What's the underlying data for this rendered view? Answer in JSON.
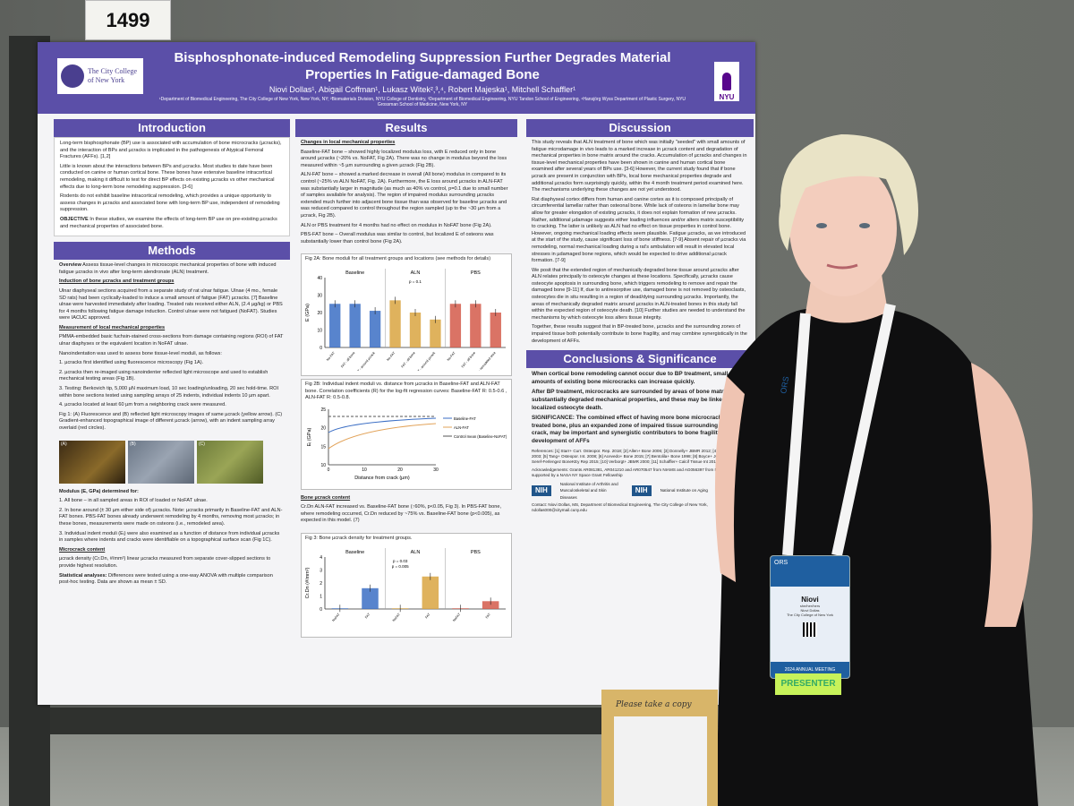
{
  "board_number": "1499",
  "poster": {
    "title": "Bisphosphonate-induced Remodeling Suppression Further Degrades Material Properties In Fatigue-damaged Bone",
    "authors": "Niovi Dollas¹, Abigail Coffman¹, Lukasz Witek²,³,⁴, Robert Majeska¹, Mitchell Schaffler¹",
    "affiliations": "¹Department of Biomedical Engineering, The City College of New York, New York, NY; ²Biomaterials Division, NYU College of Dentistry, ³Department of Biomedical Engineering, NYU Tandon School of Engineering, ⁴Hansjörg Wyss Department of Plastic Surgery, NYU Grossman School of Medicine, New York, NY",
    "logo_left": "The City College of New York",
    "logo_right": "NYU",
    "sections": {
      "introduction": {
        "heading": "Introduction",
        "bullets": [
          "Long-term bisphosphonate (BP) use is associated with accumulation of bone microcracks (µcracks), and the interaction of BPs and µcracks is implicated in the pathogenesis of Atypical Femoral Fractures (AFFs). [1,2]",
          "Little is known about the interactions between BPs and µcracks. Most studies to date have been conducted on canine or human cortical bone. These bones have extensive baseline intracortical remodeling, making it difficult to test for direct BP effects on existing µcracks vs other mechanical effects due to long-term bone remodeling suppression. [3-6]",
          "Rodents do not exhibit baseline intracortical remodeling, which provides a unique opportunity to assess changes in µcracks and associated bone with long-term BP use, independent of remodeling suppression."
        ],
        "objective_label": "OBJECTIVE",
        "objective": "In these studies, we examine the effects of long-term BP use on pre-existing µcracks and mechanical properties of associated bone."
      },
      "methods": {
        "heading": "Methods",
        "overview_label": "Overview",
        "overview": "Assess tissue-level changes in microscopic mechanical properties of bone with induced fatigue µcracks in vivo after long-term alendronate (ALN) treatment.",
        "induction_heading": "Induction of bone µcracks and treatment groups",
        "induction": "Ulnar diaphyseal sections acquired from a separate study of rat ulnar fatigue. Ulnae (4 mo., female SD rats) had been cyclically-loaded to induce a small amount of fatigue (FAT) µcracks. [7] Baseline ulnae were harvested immediately after loading. Treated rats received either ALN, (2.4 µg/kg) or PBS for 4 months following fatigue damage induction. Control ulnae were not fatigued (NoFAT). Studies were IACUC approved.",
        "measurement_heading": "Measurement of local mechanical properties",
        "measurement": [
          "PMMA-embedded basic fuchsin-stained cross-sections from damage containing regions (ROI) of FAT ulnar diaphyses or the equivalent location in NoFAT ulnae.",
          "Nanoindentation was used to assess bone tissue-level moduli, as follows:",
          "1. µcracks first identified using fluorescence microscopy (Fig 1A).",
          "2. µcracks then re-imaged using nanoindenter reflected light microscope and used to establish mechanical testing areas (Fig 1B).",
          "3. Testing: Berkovich tip, 5,000 µN maximum load, 10 sec loading/unloading, 20 sec hold-time. ROI within bone sections tested using sampling arrays of 25 indents, individual indents 10 µm apart.",
          "4. µcracks located at least 60 µm from a neighboring crack were measured."
        ],
        "fig1_caption": "Fig 1: (A) Fluorescence and (B) reflected light microscopy images of same µcrack (yellow arrow). (C) Gradient-enhanced topographical image of different µcrack (arrow), with an indent sampling array overlaid (red circles).",
        "fig1_panels": [
          "(A)",
          "(B)",
          "(C)"
        ],
        "scale_bar": "100 µm",
        "modulus_heading": "Modulus (E, GPa) determined for:",
        "modulus": [
          "1. All bone – in all sampled areas in ROI of loaded or NoFAT ulnae.",
          "2. In bone around (± 30 µm either side of) µcracks. Note: µcracks primarily in Baseline-FAT and ALN-FAT bones. PBS-FAT bones already underwent remodeling by 4 months, removing most µcracks; in these bones, measurements were made on osteons (i.e., remodeled area).",
          "3. Individual indent moduli (Eᵢ) were also examined as a function of distance from individual µcracks in samples where indents and cracks were identifiable on a topographical surface scan (Fig 1C)."
        ],
        "microcrack_heading": "Microcrack content",
        "microcrack": "µcrack density (Cr.Dn, #/mm²) linear µcracks measured from separate cover-slipped sections to provide highest resolution.",
        "stats_label": "Statistical analyses:",
        "stats": "Differences were tested using a one-way ANOVA with multiple comparison post-hoc testing. Data are shown as mean ± SD."
      },
      "results": {
        "heading": "Results",
        "local_heading": "Changes in local mechanical properties",
        "items": [
          "Baseline-FAT bone – showed highly localized modulus loss, with E reduced only in bone around µcracks (~20% vs. NoFAT, Fig 2A). There was no change in modulus beyond the loss measured within ~5 µm surrounding a given µcrack (Fig 2B).",
          "ALN-FAT bone – showed a marked decrease in overall (All bone) modulus in compared to its control (~25% vs ALN NoFAT, Fig. 2A). Furthermore, the E loss around µcracks in ALN-FAT was substantially larger in magnitude (as much as 40% vs control, p=0.1 due to small number of samples available for analysis). The region of impaired modulus surrounding µcracks extended much further into adjacent bone tissue than was observed for baseline µcracks and was reduced compared to control throughout the region sampled (up to the ~30 µm from a µcrack, Fig 2B).",
          "ALN or PBS treatment for 4 months had no effect on modulus in NoFAT bone (Fig 2A).",
          "PBS-FAT bone – Overall modulus was similar to control, but localized E of osteons was substantially lower than control bone (Fig 2A)."
        ],
        "fig2a_caption": "Fig 2A: Bone moduli for all treatment groups and locations (see methods for details)",
        "fig2b_caption": "Fig 2B: Individual indent moduli vs. distance from µcracks in Baseline-FAT and ALN-FAT bone. Correlation coefficients (R) for the log-fit regression curves: Baseline-FAT R: 0.5-0.6 , ALN-FAT R: 0.5-0.8.",
        "content_heading": "Bone µcrack content",
        "content": "Cr.Dn ALN-FAT increased vs. Baseline-FAT bone (↑60%, p<0.05, Fig 3). In PBS-FAT bone, where remodeling occurred, Cr.Dn reduced by ~75% vs. Baseline-FAT bone (p<0.005), as expected in this model. (7)",
        "fig3_caption": "Fig 3: Bone µcrack density for treatment groups."
      },
      "discussion": {
        "heading": "Discussion",
        "paragraphs": [
          "This study reveals that ALN treatment of bone which was initially \"seeded\" with small amounts of fatigue microdamage in vivo leads to a marked increase in µcrack content and degradation of mechanical properties in bone matrix around the cracks. Accumulation of µcracks and changes in tissue-level mechanical properties have been shown in canine and human cortical bone examined after several years of BPs use. [3-6] However, the current study found that if bone µcrack are present in conjunction with BPs, local bone mechanical properties degrade and additional µcracks form surprisingly quickly, within the 4 month treatment period examined here. The mechanisms underlying these changes are not yet understood.",
          "Rat diaphyseal cortex differs from human and canine cortex as it is composed principally of circumferential lamellar rather than osteonal bone. While lack of osteons in lamellar bone may allow for greater elongation of existing µcracks, it does not explain formation of new µcracks. Rather, additional µdamage suggests either loading influences and/or alters matrix susceptibility to cracking. The latter is unlikely as ALN had no effect on tissue properties in control bone. However, ongoing mechanical loading effects seem plausible. Fatigue µcracks, as we introduced at the start of the study, cause significant loss of bone stiffness. [7-9] Absent repair of µcracks via remodeling, normal mechanical loading during a rat's ambulation will result in elevated local stresses in µdamaged bone regions, which would be expected to drive additional µcrack formation. [7-9]",
          "We posit that the extended region of mechanically degraded bone tissue around µcracks after ALN relates principally to osteocyte changes at these locations. Specifically, µcracks cause osteocyte apoptosis in surrounding bone, which triggers remodeling to remove and repair the damaged bone [9-11] If, due to antiresorptive use, damaged bone is not removed by osteoclasts, osteocytes die in situ resulting in a region of dead/dying surrounding µcracks. Importantly, the areas of mechanically degraded matrix around µcracks in ALN-treated bones in this study fall within the expected region of osteocyte death. [10] Further studies are needed to understand the mechanisms by which osteocyte loss alters tissue integrity.",
          "Together, these results suggest that in BP-treated bone, µcracks and the surrounding zones of impaired tissue both potentially contribute to bone fragility, and may combine synergistically in the development of AFFs."
        ]
      },
      "conclusions": {
        "heading": "Conclusions & Significance",
        "bullets": [
          "When cortical bone remodeling cannot occur due to BP treatment, small amounts of existing bone microcracks can increase quickly.",
          "After BP treatment, microcracks are surrounded by areas of bone matrix with substantially degraded mechanical properties, and these may be linked to localized osteocyte death."
        ],
        "significance": "SIGNIFICANCE: The combined effect of having more bone microcracks in BP treated bone, plus an expanded zone of impaired tissue surrounding each crack, may be important and synergistic contributors to bone fragility and development of AFFs",
        "references": "References: [1] Starr+ Curr. Osteopor. Rep. 2018; [2] Allen+ Bone 2006; [3] Donnelly+ JBMR 2012; [4] Burr+ Bone 2003; [5] Tang+ Osteopor. Int. 2008; [6] Acevedo+ Bone 2015; [7] Bentolila+ Bone 1998; [8] Boyce+ JOR 1998; [9] Seref-Ferlengez BoneKEy Rep 2015; [10] Verborgt+ JBMR 2000; [11] Schaffler+ Calcif Tissue Int 2013",
        "acknowledgements": "Acknowledgements: Grants AR081381, AR041210 and AR070547 from NIAMS and AG056397 from NIA. ND was supported by a NASA NY Space Grant Fellowship",
        "nih_1": "National Institute of Arthritis and Musculoskeletal and Skin Diseases",
        "nih_2": "National Institute on Aging",
        "nih_badge": "NIH",
        "contact": "Contact: Niovi Dollas, MS, Department of Biomedical Engineering, The City College of New York, ndollas000@citymail.cuny.edu"
      }
    },
    "charts": {
      "fig2a": {
        "groups": [
          "Baseline",
          "ALN",
          "PBS"
        ],
        "ylabel": "E (GPa)",
        "pvalue": "p = 0.1",
        "categories": [
          "No-FAT",
          "FAT - all bone",
          "FAT - around µcrack",
          "No-FAT",
          "FAT - all bone",
          "FAT - around µcrack",
          "No-FAT",
          "FAT - all bone",
          "FAT - remodeled area"
        ],
        "values": [
          25,
          25,
          21,
          27,
          20,
          16,
          25,
          25,
          20
        ],
        "ylim": [
          0,
          40
        ],
        "yticks": [
          "0",
          "10",
          "20",
          "30",
          "40"
        ],
        "colors": [
          "#3b6ec4",
          "#3b6ec4",
          "#3b6ec4",
          "#d9a441",
          "#d9a441",
          "#d9a441",
          "#d45a4a",
          "#d45a4a",
          "#d45a4a"
        ]
      },
      "fig2b": {
        "ylabel": "Eᵢ (GPa)",
        "xlabel": "Distance from crack (µm)",
        "xticks": [
          "0",
          "10",
          "20",
          "30"
        ],
        "yticks": [
          "10",
          "15",
          "20",
          "25"
        ],
        "legend": [
          "Baseline-FAT",
          "ALN-FAT",
          "Control mean (Baseline-NoFAT)"
        ]
      },
      "fig3": {
        "groups": [
          "Baseline",
          "ALN",
          "PBS"
        ],
        "ylabel": "Cr.Dn (#/mm²)",
        "pvalue1": "p = 0.03",
        "pvalue2": "p = 0.005",
        "categories": [
          "NoFAT",
          "FAT",
          "NoFAT",
          "FAT",
          "NoFAT",
          "FAT"
        ],
        "values": [
          0.05,
          1.6,
          0.05,
          2.5,
          0.05,
          0.6
        ],
        "ylim": [
          0,
          4
        ],
        "yticks": [
          "0",
          "1",
          "2",
          "3",
          "4"
        ],
        "colors": [
          "#3b6ec4",
          "#3b6ec4",
          "#d9a441",
          "#d9a441",
          "#d45a4a",
          "#d45a4a"
        ]
      }
    }
  },
  "badge": {
    "event": "2024 ANNUAL MEETING",
    "org": "ORS",
    "name": "Niovi",
    "pronouns": "she/her/hers",
    "full_name": "Niovi Dollas",
    "institution": "The City College of New York",
    "ribbon": "PRESENTER"
  },
  "flyer_note": "Please take a copy",
  "lanyard_text": "ORS"
}
